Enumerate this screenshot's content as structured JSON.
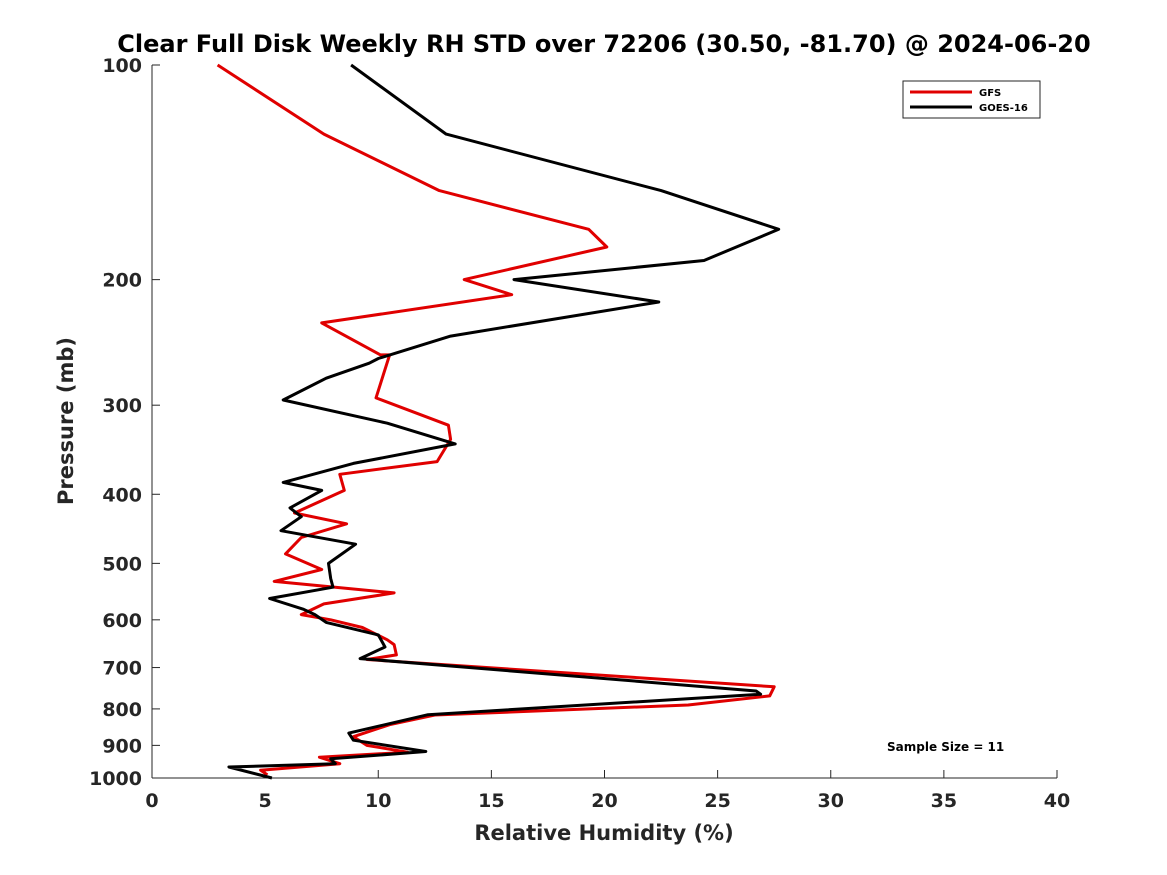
{
  "chart_data": {
    "type": "line",
    "title": "Clear Full Disk Weekly RH STD over 72206 (30.50, -81.70) @ 2024-06-20",
    "xlabel": "Relative Humidity (%)",
    "ylabel": "Pressure (mb)",
    "xlim": [
      0,
      40
    ],
    "ylim": [
      100,
      1000
    ],
    "yscale": "log",
    "y_reversed": true,
    "xticks": [
      0,
      5,
      10,
      15,
      20,
      25,
      30,
      35,
      40
    ],
    "yticks": [
      100,
      200,
      300,
      400,
      500,
      600,
      700,
      800,
      900,
      1000
    ],
    "grid": false,
    "legend_position": "top-right",
    "annotation": "Sample Size = 11",
    "series": [
      {
        "name": "GFS",
        "color": "#e00000",
        "points": [
          [
            2.9,
            100
          ],
          [
            7.6,
            125
          ],
          [
            12.7,
            150
          ],
          [
            19.3,
            170
          ],
          [
            20.1,
            180
          ],
          [
            13.8,
            200
          ],
          [
            15.9,
            210
          ],
          [
            7.5,
            230
          ],
          [
            10.1,
            255
          ],
          [
            10.5,
            255
          ],
          [
            9.9,
            293
          ],
          [
            13.1,
            320
          ],
          [
            13.2,
            335
          ],
          [
            12.6,
            360
          ],
          [
            8.3,
            375
          ],
          [
            8.5,
            395
          ],
          [
            6.3,
            425
          ],
          [
            8.6,
            440
          ],
          [
            6.6,
            460
          ],
          [
            5.9,
            485
          ],
          [
            7.5,
            510
          ],
          [
            5.4,
            530
          ],
          [
            10.7,
            550
          ],
          [
            7.6,
            570
          ],
          [
            6.6,
            590
          ],
          [
            7.9,
            600
          ],
          [
            9.3,
            615
          ],
          [
            10.4,
            640
          ],
          [
            10.7,
            650
          ],
          [
            10.8,
            672
          ],
          [
            9.5,
            682
          ],
          [
            27.5,
            745
          ],
          [
            27.3,
            767
          ],
          [
            23.7,
            790
          ],
          [
            12.5,
            816
          ],
          [
            10.5,
            842
          ],
          [
            8.9,
            875
          ],
          [
            9.5,
            900
          ],
          [
            11.3,
            920
          ],
          [
            7.4,
            935
          ],
          [
            8.3,
            955
          ],
          [
            4.8,
            975
          ],
          [
            5.1,
            990
          ]
        ]
      },
      {
        "name": "GOES-16",
        "color": "#000000",
        "points": [
          [
            8.8,
            100
          ],
          [
            13.0,
            125
          ],
          [
            22.5,
            150
          ],
          [
            27.7,
            170
          ],
          [
            24.4,
            188
          ],
          [
            16.0,
            200
          ],
          [
            22.4,
            215
          ],
          [
            13.2,
            240
          ],
          [
            10.0,
            258
          ],
          [
            9.6,
            262
          ],
          [
            7.7,
            275
          ],
          [
            5.8,
            295
          ],
          [
            10.4,
            318
          ],
          [
            13.4,
            340
          ],
          [
            8.9,
            362
          ],
          [
            5.8,
            385
          ],
          [
            7.5,
            395
          ],
          [
            6.1,
            418
          ],
          [
            6.6,
            430
          ],
          [
            5.7,
            450
          ],
          [
            9.0,
            470
          ],
          [
            7.8,
            500
          ],
          [
            7.9,
            525
          ],
          [
            8.0,
            540
          ],
          [
            5.2,
            560
          ],
          [
            6.7,
            580
          ],
          [
            7.2,
            590
          ],
          [
            7.7,
            605
          ],
          [
            10.0,
            630
          ],
          [
            10.3,
            655
          ],
          [
            9.2,
            680
          ],
          [
            26.7,
            755
          ],
          [
            26.9,
            763
          ],
          [
            12.2,
            815
          ],
          [
            8.7,
            865
          ],
          [
            8.9,
            885
          ],
          [
            12.1,
            918
          ],
          [
            7.9,
            940
          ],
          [
            8.1,
            955
          ],
          [
            3.4,
            965
          ],
          [
            5.3,
            1000
          ]
        ]
      }
    ]
  }
}
